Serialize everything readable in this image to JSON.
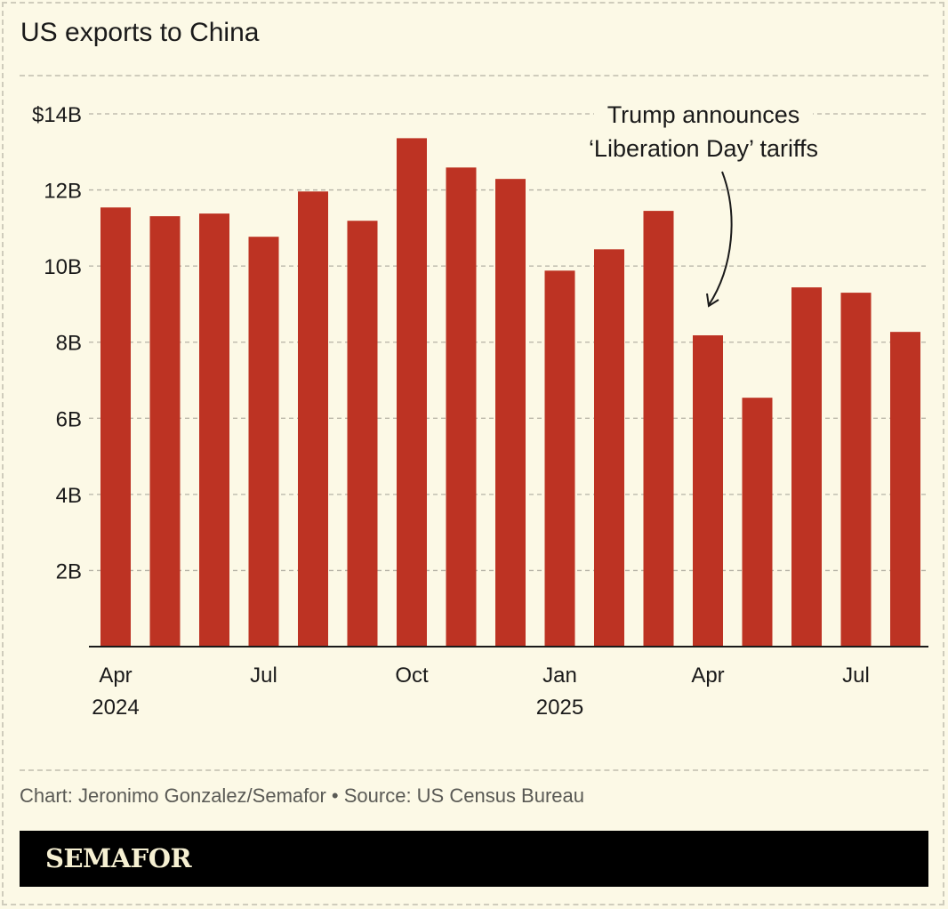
{
  "title": "US exports to China",
  "source": "Chart: Jeronimo Gonzalez/Semafor • Source: US Census Bureau",
  "logo": "SEMAFOR",
  "colors": {
    "bar": "#bd3323",
    "background": "#fcf9e6",
    "grid": "#b5b2a5"
  },
  "chart_data": {
    "type": "bar",
    "title": "US exports to China",
    "categories": [
      "Apr 2024",
      "May 2024",
      "Jun 2024",
      "Jul 2024",
      "Aug 2024",
      "Sep 2024",
      "Oct 2024",
      "Nov 2024",
      "Dec 2024",
      "Jan 2025",
      "Feb 2025",
      "Mar 2025",
      "Apr 2025",
      "May 2025",
      "Jun 2025",
      "Jul 2025",
      "Aug 2025"
    ],
    "values": [
      11.54,
      11.31,
      11.38,
      10.77,
      11.96,
      11.19,
      13.36,
      12.59,
      12.29,
      9.88,
      10.44,
      11.45,
      8.18,
      6.54,
      9.44,
      9.3,
      8.27
    ],
    "unit": "billion USD",
    "ylim": [
      0,
      14
    ],
    "yticks": [
      2,
      4,
      6,
      8,
      10,
      12,
      14
    ],
    "ytick_labels": [
      "2B",
      "4B",
      "6B",
      "8B",
      "10B",
      "12B",
      "$14B"
    ],
    "xticks": [
      {
        "index": 0,
        "label": "Apr",
        "year": "2024"
      },
      {
        "index": 3,
        "label": "Jul",
        "year": ""
      },
      {
        "index": 6,
        "label": "Oct",
        "year": ""
      },
      {
        "index": 9,
        "label": "Jan",
        "year": "2025"
      },
      {
        "index": 12,
        "label": "Apr",
        "year": ""
      },
      {
        "index": 15,
        "label": "Jul",
        "year": ""
      }
    ],
    "grid": true,
    "annotation": {
      "lines": [
        "Trump announces",
        "‘Liberation Day’ tariffs"
      ],
      "target_index": 12
    }
  }
}
